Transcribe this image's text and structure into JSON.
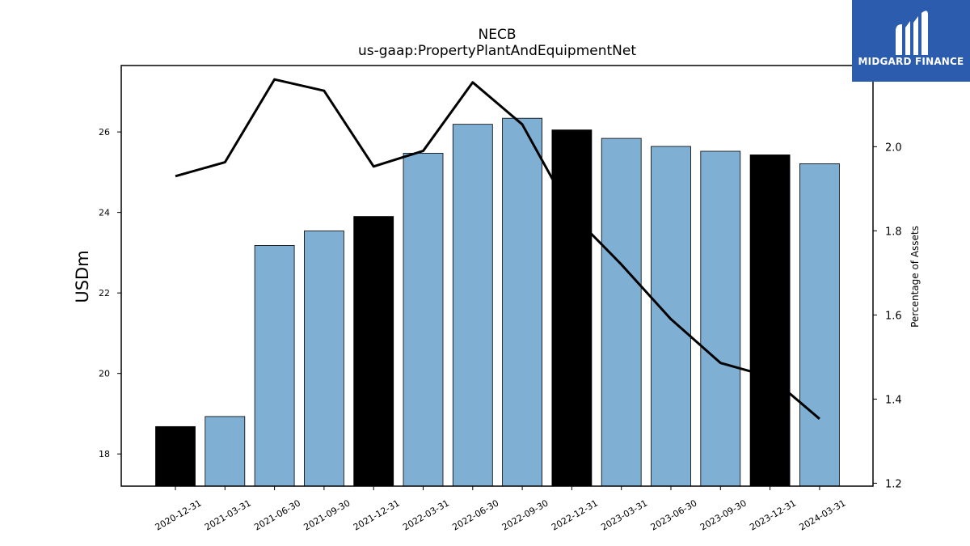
{
  "chart_data": {
    "type": "bar",
    "title": "NECB",
    "subtitle": "us-gaap:PropertyPlantAndEquipmentNet",
    "ylabel": "USDm",
    "y2label": "Percentage of Assets",
    "categories": [
      "2020-12-31",
      "2021-03-31",
      "2021-06-30",
      "2021-09-30",
      "2021-12-31",
      "2022-03-31",
      "2022-06-30",
      "2022-09-30",
      "2022-12-31",
      "2023-03-31",
      "2023-06-30",
      "2023-09-30",
      "2023-12-31",
      "2024-03-31"
    ],
    "series": [
      {
        "type": "bar",
        "axis": "left",
        "values": [
          18.68,
          18.93,
          23.18,
          23.54,
          23.9,
          25.47,
          26.19,
          26.34,
          26.05,
          25.84,
          25.64,
          25.52,
          25.43,
          25.21
        ],
        "highlight": [
          true,
          false,
          false,
          false,
          true,
          false,
          false,
          false,
          true,
          false,
          false,
          false,
          true,
          false
        ]
      },
      {
        "type": "line",
        "axis": "right",
        "values": [
          1.93,
          1.963,
          2.16,
          2.133,
          1.953,
          1.99,
          2.153,
          2.053,
          1.84,
          1.72,
          1.59,
          1.486,
          1.453,
          1.353
        ]
      }
    ],
    "ylim": [
      17.2,
      27.65
    ],
    "yticks": [
      18,
      20,
      22,
      24,
      26
    ],
    "y2lim": [
      1.193,
      2.193
    ],
    "y2ticks": [
      "1.2",
      "1.4",
      "1.6",
      "1.8",
      "2.0"
    ],
    "colors": {
      "bar": "#7fafd3",
      "bar_highlight": "#000000",
      "line": "#000000"
    },
    "grid": false
  },
  "logo": {
    "text": "MIDGARD FINANCE",
    "color": "#2b5cad"
  }
}
